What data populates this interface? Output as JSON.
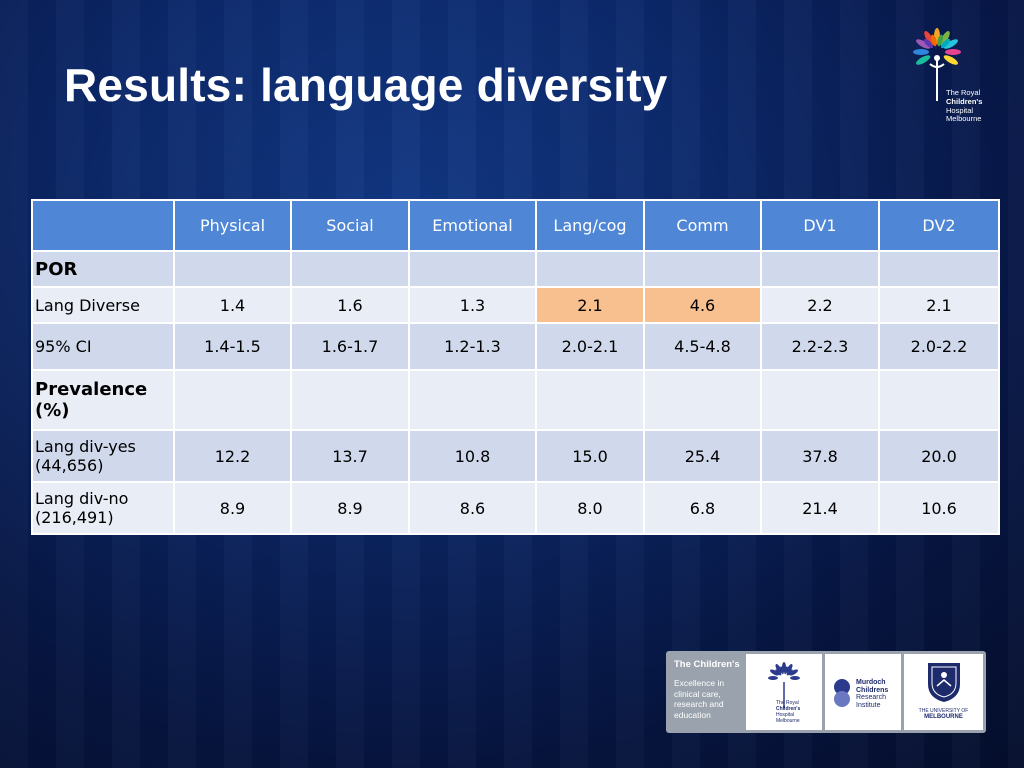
{
  "slide": {
    "title": "Results: language diversity"
  },
  "logo_top": {
    "icon": "tree-logo-icon",
    "lines": [
      "The Royal",
      "Children's",
      "Hospital",
      "Melbourne"
    ]
  },
  "table": {
    "headers": [
      "",
      "Physical",
      "Social",
      "Emotional",
      "Lang/cog",
      "Comm",
      "DV1",
      "DV2"
    ],
    "rows": [
      {
        "label": "POR",
        "cells": [
          "",
          "",
          "",
          "",
          "",
          "",
          ""
        ]
      },
      {
        "label": "Lang Diverse",
        "cells": [
          "1.4",
          "1.6",
          "1.3",
          "2.1",
          "4.6",
          "2.2",
          "2.1"
        ]
      },
      {
        "label": "95% CI",
        "cells": [
          "1.4-1.5",
          "1.6-1.7",
          "1.2-1.3",
          "2.0-2.1",
          "4.5-4.8",
          "2.2-2.3",
          "2.0-2.2"
        ]
      },
      {
        "label_lines": [
          "Prevalence",
          "(%)"
        ],
        "cells": [
          "",
          "",
          "",
          "",
          "",
          "",
          ""
        ]
      },
      {
        "label_lines": [
          "Lang div-yes",
          "(44,656)"
        ],
        "cells": [
          "12.2",
          "13.7",
          "10.8",
          "15.0",
          "25.4",
          "37.8",
          "20.0"
        ]
      },
      {
        "label_lines": [
          "Lang div-no",
          "(216,491)"
        ],
        "cells": [
          "8.9",
          "8.9",
          "8.6",
          "8.0",
          "6.8",
          "21.4",
          "10.6"
        ]
      }
    ],
    "colors": {
      "header": "#4f86d6",
      "row_a": "#d0d9ec",
      "row_b": "#e9edf6",
      "highlight": "#f8c08f"
    }
  },
  "banner": {
    "heading": "The Children's",
    "tagline_lines": [
      "Excellence in",
      "clinical care,",
      "research and",
      "education"
    ],
    "rch_lines": [
      "The Royal",
      "Children's",
      "Hospital",
      "Melbourne"
    ],
    "mcri_lines": [
      "Murdoch",
      "Childrens",
      "Research",
      "Institute"
    ],
    "uom_lines": [
      "THE UNIVERSITY OF",
      "MELBOURNE"
    ]
  }
}
